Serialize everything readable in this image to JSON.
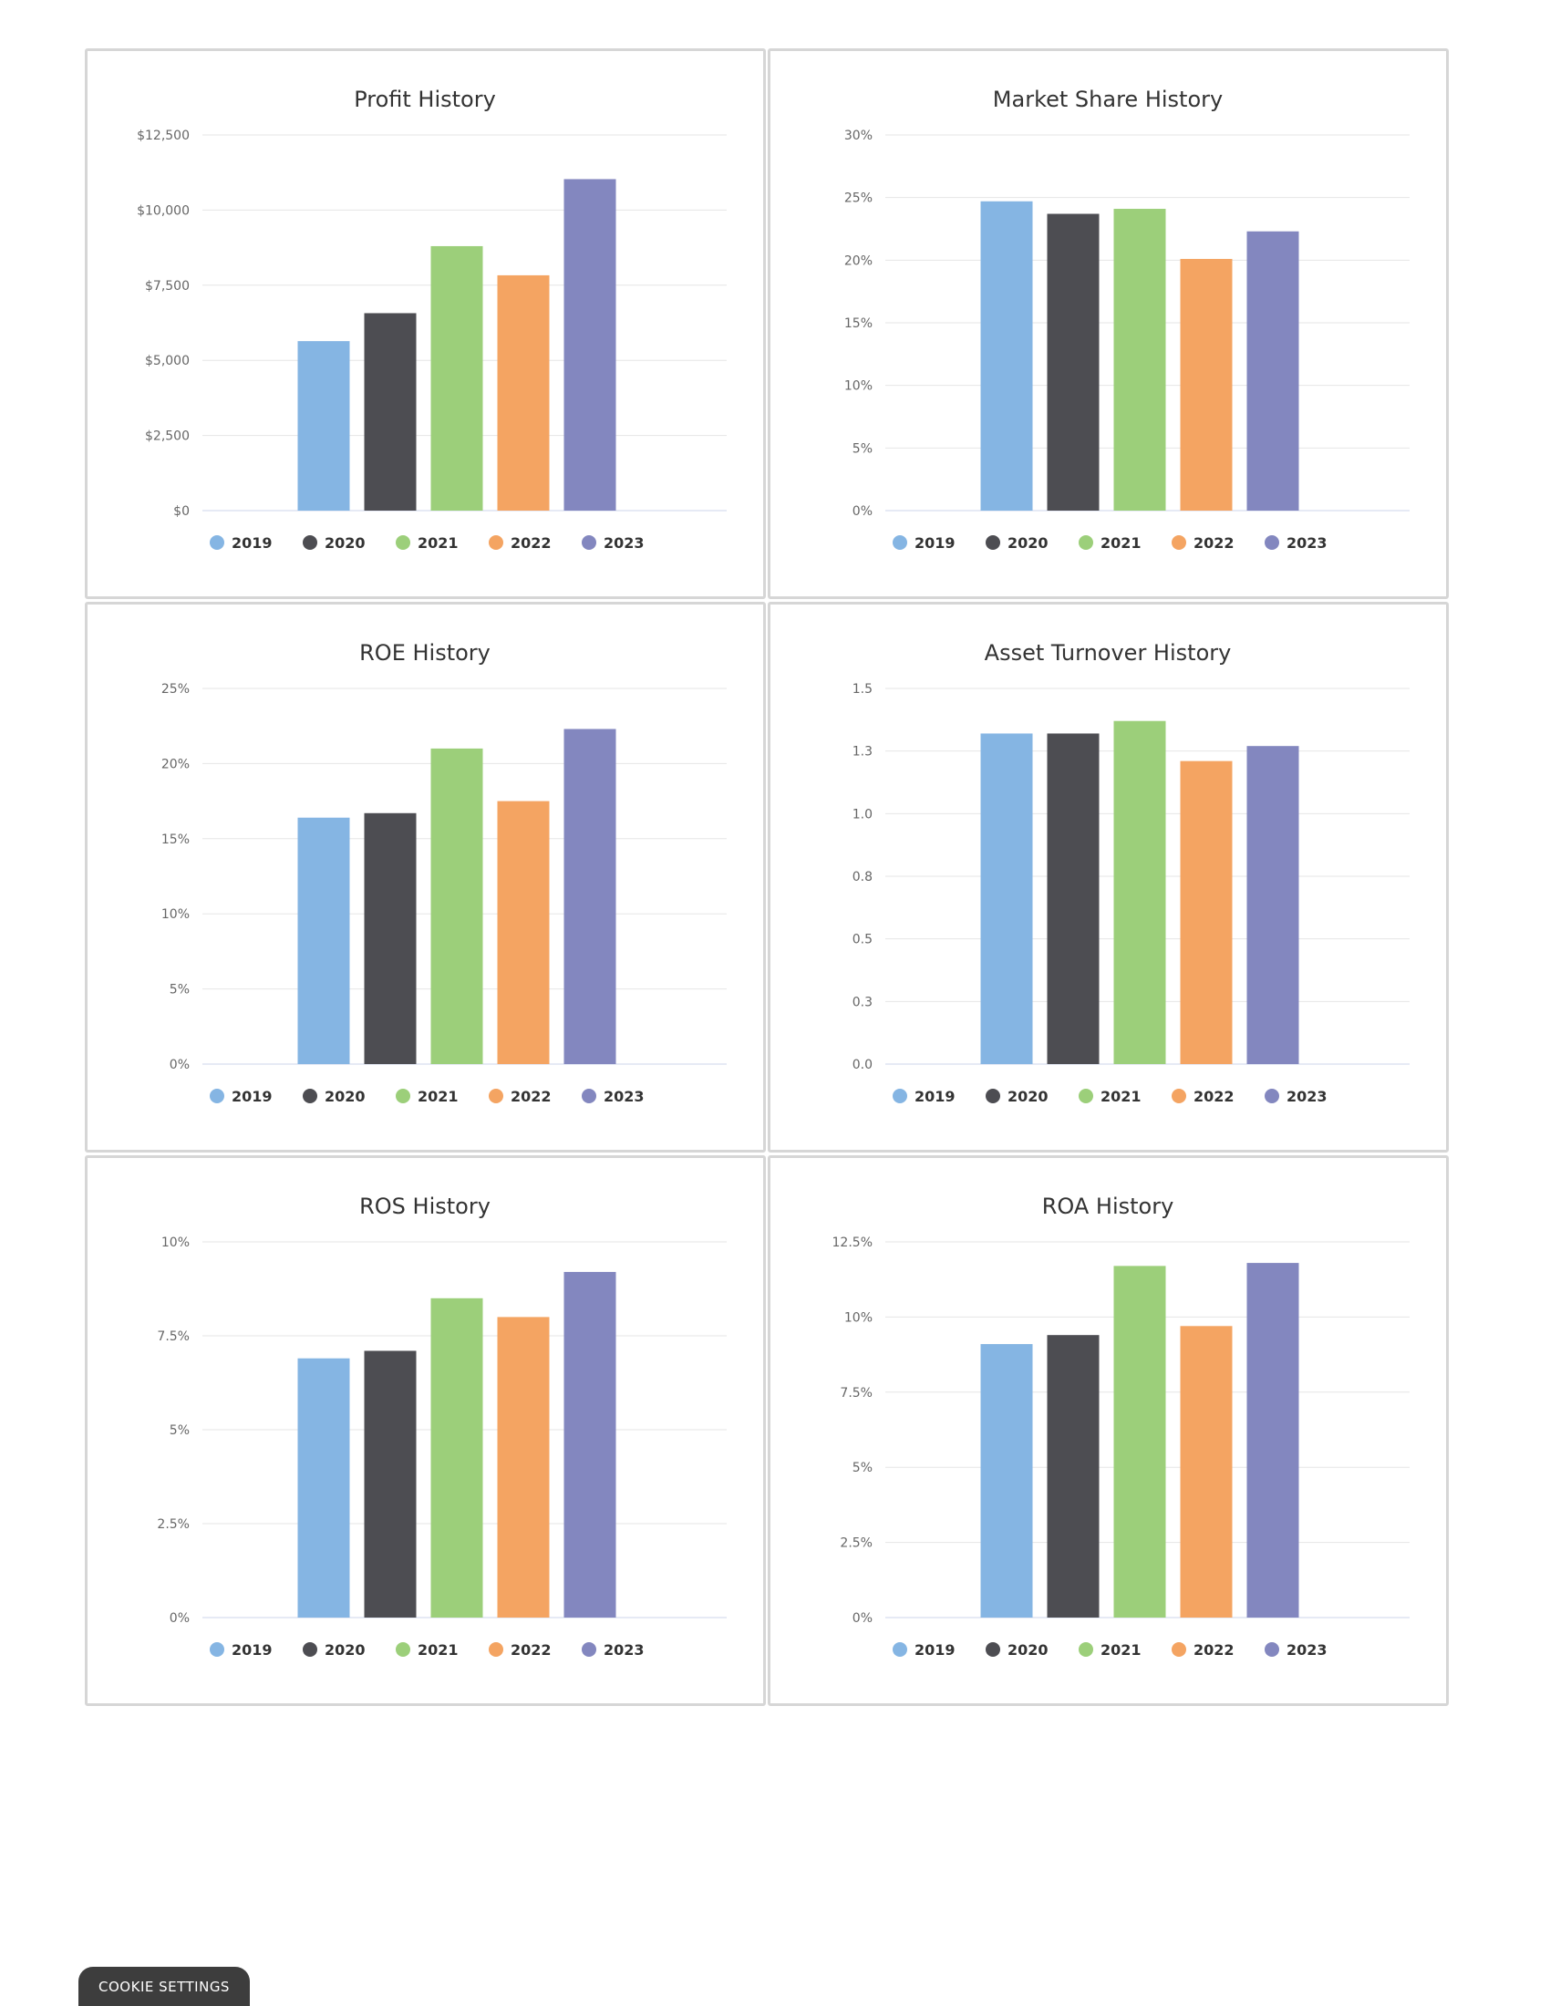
{
  "legend": [
    "2019",
    "2020",
    "2021",
    "2022",
    "2023"
  ],
  "colors": [
    "#85b5e3",
    "#4d4d52",
    "#9ccf7a",
    "#f4a462",
    "#8387bf"
  ],
  "cookie_button": "COOKIE SETTINGS",
  "chart_data": [
    {
      "type": "bar",
      "title": "Profit History",
      "categories": [
        "2019",
        "2020",
        "2021",
        "2022",
        "2023"
      ],
      "values": [
        5640,
        6570,
        8800,
        7830,
        11030
      ],
      "ylim": [
        0,
        12500
      ],
      "ticks": [
        "$0",
        "$2,500",
        "$5,000",
        "$7,500",
        "$10,000",
        "$12,500"
      ],
      "grid": true,
      "legend": "bottom"
    },
    {
      "type": "bar",
      "title": "Market Share History",
      "categories": [
        "2019",
        "2020",
        "2021",
        "2022",
        "2023"
      ],
      "values": [
        24.7,
        23.7,
        24.1,
        20.1,
        22.3
      ],
      "ylim": [
        0,
        30
      ],
      "ticks": [
        "0%",
        "5%",
        "10%",
        "15%",
        "20%",
        "25%",
        "30%"
      ],
      "grid": true,
      "legend": "bottom"
    },
    {
      "type": "bar",
      "title": "ROE History",
      "categories": [
        "2019",
        "2020",
        "2021",
        "2022",
        "2023"
      ],
      "values": [
        16.4,
        16.7,
        21.0,
        17.5,
        22.3
      ],
      "ylim": [
        0,
        25
      ],
      "ticks": [
        "0%",
        "5%",
        "10%",
        "15%",
        "20%",
        "25%"
      ],
      "grid": true,
      "legend": "bottom"
    },
    {
      "type": "bar",
      "title": "Asset Turnover History",
      "categories": [
        "2019",
        "2020",
        "2021",
        "2022",
        "2023"
      ],
      "values": [
        1.32,
        1.32,
        1.37,
        1.21,
        1.27
      ],
      "ylim": [
        0,
        1.5
      ],
      "ticks": [
        "0.0",
        "0.3",
        "0.5",
        "0.8",
        "1.0",
        "1.3",
        "1.5"
      ],
      "grid": true,
      "legend": "bottom"
    },
    {
      "type": "bar",
      "title": "ROS History",
      "categories": [
        "2019",
        "2020",
        "2021",
        "2022",
        "2023"
      ],
      "values": [
        6.9,
        7.1,
        8.5,
        8.0,
        9.2
      ],
      "ylim": [
        0,
        10
      ],
      "ticks": [
        "0%",
        "2.5%",
        "5%",
        "7.5%",
        "10%"
      ],
      "grid": true,
      "legend": "bottom"
    },
    {
      "type": "bar",
      "title": "ROA History",
      "categories": [
        "2019",
        "2020",
        "2021",
        "2022",
        "2023"
      ],
      "values": [
        9.1,
        9.4,
        11.7,
        9.7,
        11.8
      ],
      "ylim": [
        0,
        12.5
      ],
      "ticks": [
        "0%",
        "2.5%",
        "5%",
        "7.5%",
        "10%",
        "12.5%"
      ],
      "grid": true,
      "legend": "bottom"
    }
  ]
}
